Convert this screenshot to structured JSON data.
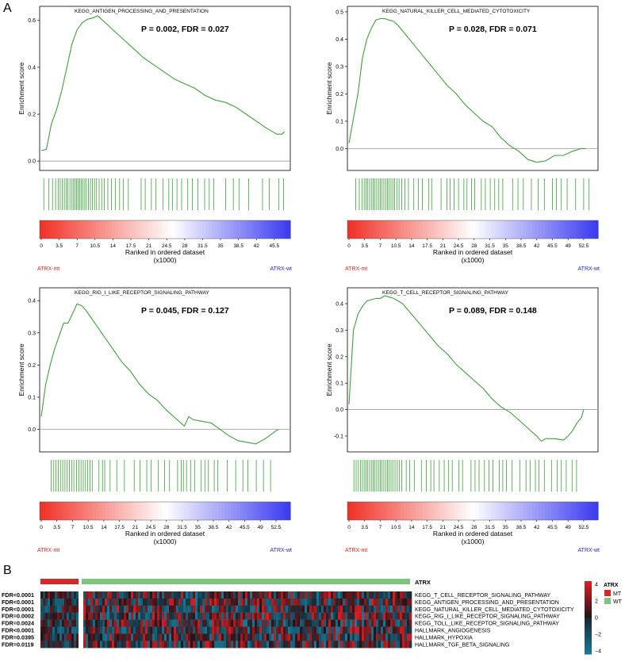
{
  "panels": {
    "A": "A",
    "B": "B"
  },
  "colors": {
    "curve": "#3aa336",
    "hit": "#3aa336",
    "mt_red": "#e8221b",
    "wt_blue": "#2424d8"
  },
  "gsea": [
    {
      "title": "KEGG_ANTIGEN_PROCESSING_AND_PRESENTATION",
      "stats": "P = 0.002, FDR = 0.027",
      "ylabel": "Enrichment score",
      "xlabel": "Ranked in ordered dataset",
      "xunit": "(x1000)",
      "left_label": "ATRX-mt",
      "right_label": "ATRX-wt",
      "yticks": [
        "0.0",
        "0.2",
        "0.4",
        "0.6"
      ],
      "ylim": [
        -0.04,
        0.66
      ],
      "xticks": [
        "0",
        "3.5",
        "7",
        "10.5",
        "14",
        "17.5",
        "21",
        "24.5",
        "28",
        "31.5",
        "35",
        "38.5",
        "42",
        "45.5"
      ],
      "xmax": 48,
      "zero_pos": 0.53,
      "curve": [
        [
          0,
          0.045
        ],
        [
          1,
          0.05
        ],
        [
          2,
          0.16
        ],
        [
          3,
          0.22
        ],
        [
          4,
          0.3
        ],
        [
          5,
          0.4
        ],
        [
          6,
          0.5
        ],
        [
          7,
          0.56
        ],
        [
          8,
          0.59
        ],
        [
          9,
          0.605
        ],
        [
          10,
          0.61
        ],
        [
          11,
          0.62
        ],
        [
          12,
          0.6
        ],
        [
          14,
          0.56
        ],
        [
          16,
          0.52
        ],
        [
          18,
          0.48
        ],
        [
          20,
          0.44
        ],
        [
          22,
          0.41
        ],
        [
          24,
          0.38
        ],
        [
          26,
          0.35
        ],
        [
          28,
          0.33
        ],
        [
          30,
          0.31
        ],
        [
          32,
          0.28
        ],
        [
          34,
          0.26
        ],
        [
          36,
          0.25
        ],
        [
          38,
          0.23
        ],
        [
          40,
          0.2
        ],
        [
          42,
          0.17
        ],
        [
          44,
          0.14
        ],
        [
          46,
          0.115
        ],
        [
          47,
          0.115
        ],
        [
          47.5,
          0.125
        ]
      ],
      "hits": [
        0.5,
        1.5,
        2.2,
        2.8,
        3.3,
        3.7,
        4.1,
        4.5,
        4.9,
        5.2,
        5.6,
        6,
        6.3,
        6.6,
        6.9,
        7.2,
        7.5,
        7.8,
        8.1,
        8.5,
        8.8,
        9.2,
        9.6,
        10,
        10.4,
        10.8,
        11.3,
        11.8,
        12.3,
        13,
        13.7,
        14.5,
        15.3,
        16,
        17,
        19.5,
        20.3,
        21.5,
        22.4,
        23.8,
        24.9,
        25.6,
        26.5,
        27.4,
        28.6,
        29.5,
        30.6,
        31.9,
        32.8,
        33.7,
        36,
        37.5,
        38.6,
        40.5,
        43.2,
        44.5,
        46.4,
        47.3
      ]
    },
    {
      "title": "KEGG_NATURAL_KILLER_CELL_MEDIATED_CYTOTOXICITY",
      "stats": "P = 0.028, FDR = 0.071",
      "ylabel": "Enrichment score",
      "xlabel": "Ranked in ordered dataset",
      "xunit": "(x1000)",
      "left_label": "ATRX-mt",
      "right_label": "ATRX-wt",
      "yticks": [
        "0.0",
        "0.1",
        "0.2",
        "0.3",
        "0.4",
        "0.5"
      ],
      "ylim": [
        -0.08,
        0.52
      ],
      "xticks": [
        "0",
        "3.5",
        "7",
        "10.5",
        "14",
        "17.5",
        "21",
        "24.5",
        "28",
        "31.5",
        "35",
        "38.5",
        "42",
        "45.5",
        "49",
        "52.5"
      ],
      "xmax": 55,
      "zero_pos": 0.5,
      "curve": [
        [
          0,
          0.02
        ],
        [
          1,
          0.11
        ],
        [
          2,
          0.2
        ],
        [
          3,
          0.33
        ],
        [
          4,
          0.4
        ],
        [
          5,
          0.44
        ],
        [
          6,
          0.47
        ],
        [
          7,
          0.475
        ],
        [
          8,
          0.475
        ],
        [
          9,
          0.47
        ],
        [
          10,
          0.465
        ],
        [
          11,
          0.45
        ],
        [
          12,
          0.43
        ],
        [
          14,
          0.39
        ],
        [
          16,
          0.35
        ],
        [
          18,
          0.31
        ],
        [
          20,
          0.27
        ],
        [
          22,
          0.23
        ],
        [
          24,
          0.2
        ],
        [
          26,
          0.16
        ],
        [
          28,
          0.13
        ],
        [
          30,
          0.1
        ],
        [
          32,
          0.08
        ],
        [
          34,
          0.04
        ],
        [
          36,
          0.01
        ],
        [
          38,
          -0.01
        ],
        [
          40,
          -0.04
        ],
        [
          42,
          -0.05
        ],
        [
          44,
          -0.045
        ],
        [
          46,
          -0.025
        ],
        [
          48,
          -0.025
        ],
        [
          50,
          -0.01
        ],
        [
          52,
          0.0
        ],
        [
          53,
          0.0
        ]
      ],
      "hits": [
        1.5,
        2.3,
        2.9,
        3.4,
        3.8,
        4.2,
        4.6,
        5,
        5.4,
        5.8,
        6.2,
        6.6,
        7,
        7.4,
        7.8,
        8.2,
        8.6,
        9,
        9.4,
        9.8,
        10.2,
        10.7,
        11.2,
        11.8,
        12.5,
        13.3,
        14.5,
        15.5,
        16.4,
        17.8,
        18.5,
        20.6,
        21.9,
        22.6,
        23.5,
        24.5,
        25.7,
        26.4,
        27.4,
        28.1,
        29.6,
        30.5,
        31.6,
        32.6,
        33.5,
        34.4,
        36.6,
        37.8,
        39,
        40.8,
        42.3,
        43.7,
        45.5,
        46.4,
        47.5,
        48.8,
        50.7,
        52.5,
        53.7
      ]
    },
    {
      "title": "KEGG_RIG_I_LIKE_RECEPTOR_SIGNALING_PATHWAY",
      "stats": "P = 0.045, FDR = 0.127",
      "ylabel": "Enrichment score",
      "xlabel": "Ranked in ordered dataset",
      "xunit": "(x1000)",
      "left_label": "ATRX-mt",
      "right_label": "ATRX-wt",
      "yticks": [
        "0.0",
        "0.1",
        "0.2",
        "0.3",
        "0.4"
      ],
      "ylim": [
        -0.07,
        0.44
      ],
      "xticks": [
        "0",
        "3.5",
        "7",
        "10.5",
        "14",
        "17.5",
        "21",
        "24.5",
        "28",
        "31.5",
        "35",
        "38.5",
        "42",
        "45.5",
        "49",
        "52.5"
      ],
      "xmax": 55,
      "zero_pos": 0.5,
      "curve": [
        [
          0,
          0.04
        ],
        [
          1,
          0.14
        ],
        [
          2,
          0.2
        ],
        [
          3,
          0.25
        ],
        [
          4,
          0.29
        ],
        [
          5,
          0.33
        ],
        [
          6,
          0.33
        ],
        [
          7,
          0.36
        ],
        [
          8,
          0.39
        ],
        [
          9,
          0.385
        ],
        [
          10,
          0.37
        ],
        [
          12,
          0.33
        ],
        [
          14,
          0.29
        ],
        [
          16,
          0.25
        ],
        [
          18,
          0.21
        ],
        [
          20,
          0.18
        ],
        [
          22,
          0.14
        ],
        [
          24,
          0.11
        ],
        [
          26,
          0.09
        ],
        [
          28,
          0.06
        ],
        [
          30,
          0.035
        ],
        [
          32,
          0.01
        ],
        [
          33,
          0.04
        ],
        [
          34,
          0.03
        ],
        [
          36,
          0.025
        ],
        [
          38,
          0.02
        ],
        [
          40,
          0.0
        ],
        [
          42,
          -0.02
        ],
        [
          44,
          -0.035
        ],
        [
          46,
          -0.04
        ],
        [
          48,
          -0.045
        ],
        [
          50,
          -0.03
        ],
        [
          52,
          -0.01
        ],
        [
          53,
          0.0
        ]
      ],
      "hits": [
        2.2,
        2.8,
        3.3,
        3.8,
        4.3,
        4.8,
        5.3,
        5.8,
        6.3,
        6.8,
        7.3,
        7.9,
        8.4,
        8.9,
        9.4,
        9.9,
        10.4,
        10.9,
        11.4,
        12.9,
        13.7,
        14.2,
        15.4,
        16.9,
        18.6,
        20.8,
        22.1,
        23.6,
        24.6,
        26.2,
        27.6,
        28.7,
        30.5,
        31.3,
        31.8,
        32.5,
        33.4,
        34.3,
        35.8,
        36.6,
        37.4,
        38.7,
        39.5,
        41.6,
        43.5,
        45.1,
        46.2,
        48.1,
        49.7,
        51.3
      ]
    },
    {
      "title": "KEGG_T_CELL_RECEPTOR_SIGNALING_PATHWAY",
      "stats": "P = 0.089, FDR = 0.148",
      "ylabel": "Enrichment score",
      "xlabel": "Ranked in ordered dataset",
      "xunit": "(x1000)",
      "left_label": "ATRX-mt",
      "right_label": "ATRX-wt",
      "yticks": [
        "-0.1",
        "0.0",
        "0.1",
        "0.2",
        "0.3",
        "0.4"
      ],
      "ylim": [
        -0.16,
        0.46
      ],
      "xticks": [
        "0",
        "3.5",
        "7",
        "10.5",
        "14",
        "17.5",
        "21",
        "24.5",
        "28",
        "31.5",
        "35",
        "38.5",
        "42",
        "45.5",
        "49",
        "52.5"
      ],
      "xmax": 55,
      "zero_pos": 0.5,
      "curve": [
        [
          0,
          0.02
        ],
        [
          1,
          0.3
        ],
        [
          2,
          0.36
        ],
        [
          3,
          0.39
        ],
        [
          4,
          0.41
        ],
        [
          5,
          0.415
        ],
        [
          6,
          0.42
        ],
        [
          7,
          0.42
        ],
        [
          8,
          0.43
        ],
        [
          9,
          0.425
        ],
        [
          10,
          0.42
        ],
        [
          12,
          0.4
        ],
        [
          14,
          0.36
        ],
        [
          16,
          0.32
        ],
        [
          18,
          0.28
        ],
        [
          20,
          0.24
        ],
        [
          22,
          0.21
        ],
        [
          24,
          0.17
        ],
        [
          26,
          0.14
        ],
        [
          28,
          0.11
        ],
        [
          30,
          0.08
        ],
        [
          32,
          0.04
        ],
        [
          34,
          0.01
        ],
        [
          36,
          -0.01
        ],
        [
          38,
          -0.04
        ],
        [
          40,
          -0.07
        ],
        [
          42,
          -0.1
        ],
        [
          43,
          -0.12
        ],
        [
          44,
          -0.11
        ],
        [
          46,
          -0.11
        ],
        [
          48,
          -0.115
        ],
        [
          49,
          -0.1
        ],
        [
          50,
          -0.08
        ],
        [
          51,
          -0.05
        ],
        [
          52,
          -0.03
        ],
        [
          52.5,
          0.0
        ]
      ],
      "hits": [
        1.1,
        1.6,
        2.1,
        2.6,
        3,
        3.4,
        3.8,
        4.2,
        4.6,
        5,
        5.4,
        5.8,
        6.2,
        6.6,
        7,
        7.4,
        7.8,
        8.2,
        8.6,
        9,
        9.4,
        9.8,
        10.3,
        10.8,
        11.3,
        11.8,
        12.8,
        13.6,
        14.6,
        16.2,
        17.3,
        18.3,
        19,
        20.2,
        21.3,
        22.3,
        23.1,
        24.6,
        25.4,
        27.3,
        28.2,
        29.1,
        30.3,
        31.3,
        32.2,
        33.6,
        34.4,
        35.2,
        36.5,
        38.2,
        39.6,
        40.5,
        41.7,
        42.5,
        43.7,
        45.3,
        46.6,
        47.5,
        48.6,
        49.9,
        50.9
      ]
    }
  ],
  "heatmap": {
    "annotation_label": "ATRX",
    "legend_title": "ATRX",
    "legend_items": [
      {
        "label": "MT",
        "color": "#d7262c"
      },
      {
        "label": "WT",
        "color": "#7fc47c"
      }
    ],
    "scale_ticks": [
      "4",
      "2",
      "0",
      "−2",
      "−4"
    ],
    "rows": [
      {
        "fdr": "FDR<0.0001",
        "name": "KEGG_T_CELL_RECEPTOR_SIGNALING_PATHWAY"
      },
      {
        "fdr": "FDR<0.0001",
        "name": "KEGG_ANTIGEN_PROCESSING_AND_PRESENTATION"
      },
      {
        "fdr": "FDR<0.0001",
        "name": "KEGG_NATURAL_KILLER_CELL_MEDIATED_CYTOTOXICITY"
      },
      {
        "fdr": "FDR=0.0002",
        "name": "KEGG_RIG_I_LIKE_RECEPTOR_SIGNALING_PATHWAY"
      },
      {
        "fdr": "FDR=0.0024",
        "name": "KEGG_TOLL_LIKE_RECEPTOR_SIGNALING_PATHWAY"
      },
      {
        "fdr": "FDR<0.0001",
        "name": "HALLMARK_ANGIOGENESIS"
      },
      {
        "fdr": "FDR=0.0395",
        "name": "HALLMARK_HYPOXIA"
      },
      {
        "fdr": "FDR=0.0119",
        "name": "HALLMARK_TGF_BETA_SIGNALING"
      }
    ]
  }
}
